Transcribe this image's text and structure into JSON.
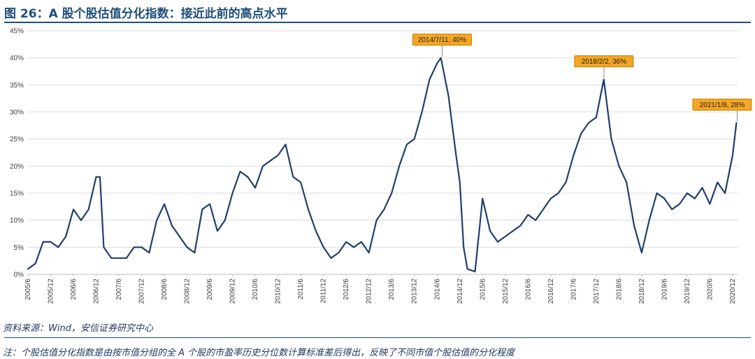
{
  "title": "图 26：A 股个股估值分化指数：接近此前的高点水平",
  "source": "资料来源：Wind，安信证券研究中心",
  "note": "注：个股估值分化指数是由按市值分组的全 A 个股的市盈率历史分位数计算标准差后得出，反映了不同市值个股估值的分化程度",
  "colors": {
    "line": "#1f3f6e",
    "callout_fill": "#f5a623",
    "callout_border": "#c47f00",
    "grid": "#d9d9d9",
    "title": "#1f4e79"
  },
  "chart_data": {
    "type": "line",
    "title": "",
    "xlabel": "",
    "ylabel": "",
    "ylim": [
      0,
      45
    ],
    "ytick_labels": [
      "0%",
      "5%",
      "10%",
      "15%",
      "20%",
      "25%",
      "30%",
      "35%",
      "40%",
      "45%"
    ],
    "xtick_labels": [
      "2005/6",
      "2005/12",
      "2006/6",
      "2006/12",
      "2007/6",
      "2007/12",
      "2008/6",
      "2008/12",
      "2009/6",
      "2009/12",
      "2010/6",
      "2010/12",
      "2011/6",
      "2011/12",
      "2012/6",
      "2012/12",
      "2013/6",
      "2013/12",
      "2014/6",
      "2014/12",
      "2015/6",
      "2015/12",
      "2016/6",
      "2016/12",
      "2017/6",
      "2017/12",
      "2018/6",
      "2018/12",
      "2019/6",
      "2019/12",
      "2020/6",
      "2020/12"
    ],
    "grid": "horizontal",
    "annotations": [
      {
        "label": "2014/7/11, 40%",
        "x": "2014/7/11",
        "y": 40
      },
      {
        "label": "2018/2/2, 36%",
        "x": "2018/2/2",
        "y": 36
      },
      {
        "label": "2021/1/8, 28%",
        "x": "2021/1/8",
        "y": 28
      }
    ],
    "series": [
      {
        "x": [
          "2005/6",
          "2005/8",
          "2005/10",
          "2005/12",
          "2006/2",
          "2006/4",
          "2006/6",
          "2006/8",
          "2006/10",
          "2006/12",
          "2007/1",
          "2007/2",
          "2007/4",
          "2007/6",
          "2007/8",
          "2007/10",
          "2007/12",
          "2008/2",
          "2008/4",
          "2008/6",
          "2008/8",
          "2008/10",
          "2008/12",
          "2009/2",
          "2009/4",
          "2009/6",
          "2009/8",
          "2009/10",
          "2009/12",
          "2010/2",
          "2010/4",
          "2010/6",
          "2010/8",
          "2010/10",
          "2010/12",
          "2011/2",
          "2011/4",
          "2011/6",
          "2011/8",
          "2011/10",
          "2011/12",
          "2012/2",
          "2012/4",
          "2012/6",
          "2012/8",
          "2012/10",
          "2012/12",
          "2013/2",
          "2013/4",
          "2013/6",
          "2013/8",
          "2013/10",
          "2013/12",
          "2014/2",
          "2014/4",
          "2014/6",
          "2014/7",
          "2014/9",
          "2014/11",
          "2014/12",
          "2015/1",
          "2015/2",
          "2015/4",
          "2015/6",
          "2015/8",
          "2015/10",
          "2015/12",
          "2016/2",
          "2016/4",
          "2016/6",
          "2016/8",
          "2016/10",
          "2016/12",
          "2017/2",
          "2017/4",
          "2017/6",
          "2017/8",
          "2017/10",
          "2017/12",
          "2018/2",
          "2018/4",
          "2018/6",
          "2018/8",
          "2018/10",
          "2018/12",
          "2019/2",
          "2019/4",
          "2019/6",
          "2019/8",
          "2019/10",
          "2019/12",
          "2020/2",
          "2020/4",
          "2020/6",
          "2020/8",
          "2020/10",
          "2020/12",
          "2021/1"
        ],
        "values": [
          1,
          2,
          6,
          6,
          5,
          7,
          12,
          10,
          12,
          18,
          18,
          5,
          3,
          3,
          3,
          5,
          5,
          4,
          10,
          13,
          9,
          7,
          5,
          4,
          12,
          13,
          8,
          10,
          15,
          19,
          18,
          16,
          20,
          21,
          22,
          24,
          18,
          17,
          12,
          8,
          5,
          3,
          4,
          6,
          5,
          6,
          4,
          10,
          12,
          15,
          20,
          24,
          25,
          30,
          36,
          39,
          40,
          33,
          22,
          17,
          5,
          1,
          0.5,
          14,
          8,
          6,
          7,
          8,
          9,
          11,
          10,
          12,
          14,
          15,
          17,
          22,
          26,
          28,
          29,
          36,
          25,
          20,
          17,
          9,
          4,
          10,
          15,
          14,
          12,
          13,
          15,
          14,
          16,
          13,
          17,
          15,
          22,
          28
        ]
      }
    ]
  }
}
